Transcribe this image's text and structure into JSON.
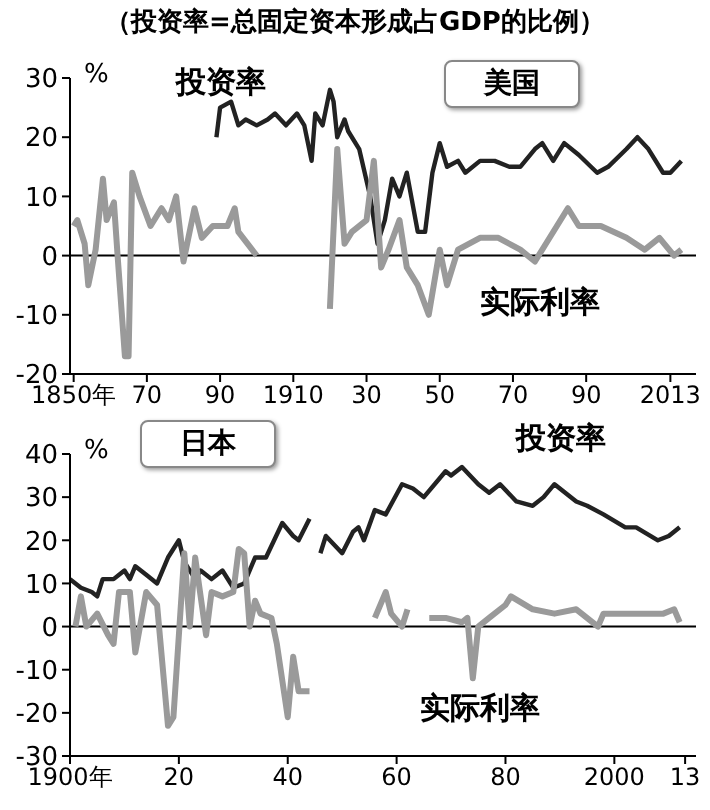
{
  "chart_data": [
    {
      "type": "line",
      "title": "（投资率=总固定资本形成占GDP的比例）",
      "subtitle": "美国",
      "ylabel": "%",
      "xlim": [
        1849,
        2020
      ],
      "xticks": [
        {
          "value": 1850,
          "label": "1850年"
        },
        {
          "value": 1870,
          "label": "70"
        },
        {
          "value": 1890,
          "label": "90"
        },
        1910,
        {
          "value": 1930,
          "label": "30"
        },
        {
          "value": 1950,
          "label": "50"
        },
        {
          "value": 1970,
          "label": "70"
        },
        {
          "value": 1990,
          "label": "90"
        },
        2013
      ],
      "ylim": [
        -20,
        30
      ],
      "yticks": [
        -20,
        -10,
        0,
        10,
        20,
        30
      ],
      "ref_lines": [
        {
          "axis": "y",
          "value": 0,
          "color": "#000000"
        }
      ],
      "series": [
        {
          "name": "投资率",
          "color": "#222222",
          "x": [
            1889,
            1890,
            1893,
            1895,
            1897,
            1900,
            1903,
            1905,
            1908,
            1911,
            1913,
            1915,
            1916,
            1918,
            1920,
            1921,
            1922,
            1924,
            1925,
            1928,
            1931,
            1933,
            1935,
            1937,
            1939,
            1941,
            1944,
            1946,
            1948,
            1950,
            1952,
            1955,
            1957,
            1961,
            1965,
            1969,
            1972,
            1976,
            1978,
            1981,
            1984,
            1988,
            1993,
            1996,
            2001,
            2004,
            2007,
            2011,
            2013,
            2016
          ],
          "values": [
            20,
            25,
            26,
            22,
            23,
            22,
            23,
            24,
            22,
            24,
            22,
            16,
            24,
            22,
            28,
            26,
            20,
            23,
            21,
            18,
            10,
            2,
            6,
            13,
            10,
            14,
            4,
            4,
            14,
            19,
            15,
            16,
            14,
            16,
            16,
            15,
            15,
            18,
            19,
            16,
            19,
            17,
            14,
            15,
            18,
            20,
            18,
            14,
            14,
            16
          ]
        },
        {
          "name": "实际利率",
          "color": "#9a9a9a",
          "x": [
            1850,
            1851,
            1853,
            1854,
            1856,
            1858,
            1859,
            1861,
            1862,
            1864,
            1865,
            1866,
            1868,
            1871,
            1874,
            1876,
            1878,
            1880,
            1883,
            1885,
            1888,
            1892,
            1894,
            1895,
            1900,
            1910,
            1920,
            1922,
            1924,
            1926,
            1930,
            1932,
            1934,
            1936,
            1939,
            1941,
            1944,
            1947,
            1950,
            1952,
            1955,
            1961,
            1966,
            1972,
            1976,
            1979,
            1985,
            1988,
            1994,
            2001,
            2006,
            2010,
            2014,
            2016
          ],
          "values": [
            5,
            6,
            2,
            -5,
            1,
            13,
            6,
            9,
            0,
            -17,
            -17,
            14,
            10,
            5,
            8,
            6,
            10,
            -1,
            8,
            3,
            5,
            5,
            8,
            4,
            0,
            null,
            -9,
            18,
            2,
            4,
            6,
            16,
            -2,
            1,
            6,
            -2,
            -5,
            -10,
            1,
            -5,
            1,
            3,
            3,
            1,
            -1,
            2,
            8,
            5,
            5,
            3,
            1,
            3,
            0,
            1
          ]
        }
      ]
    },
    {
      "type": "line",
      "subtitle": "日本",
      "ylabel": "%",
      "xlim": [
        1900,
        2015
      ],
      "xticks": [
        {
          "value": 1900,
          "label": "1900年"
        },
        {
          "value": 1920,
          "label": "20"
        },
        {
          "value": 1940,
          "label": "40"
        },
        {
          "value": 1960,
          "label": "60"
        },
        {
          "value": 1980,
          "label": "80"
        },
        2000,
        {
          "value": 2013,
          "label": "13"
        }
      ],
      "ylim": [
        -30,
        40
      ],
      "yticks": [
        -30,
        -20,
        -10,
        0,
        10,
        20,
        30,
        40
      ],
      "ref_lines": [
        {
          "axis": "y",
          "value": 0,
          "color": "#000000"
        }
      ],
      "series": [
        {
          "name": "投资率",
          "color": "#222222",
          "x": [
            1900,
            1902,
            1904,
            1905,
            1906,
            1908,
            1910,
            1911,
            1912,
            1914,
            1916,
            1918,
            1920,
            1921,
            1923,
            1924,
            1926,
            1928,
            1930,
            1932,
            1934,
            1936,
            1939,
            1941,
            1942,
            1944,
            1945,
            1946,
            1947,
            1950,
            1952,
            1953,
            1954,
            1956,
            1958,
            1961,
            1963,
            1965,
            1969,
            1970,
            1972,
            1975,
            1977,
            1979,
            1982,
            1985,
            1987,
            1989,
            1993,
            1995,
            1998,
            2002,
            2004,
            2008,
            2010,
            2012
          ],
          "values": [
            11,
            9,
            8,
            7,
            11,
            11,
            13,
            11,
            14,
            12,
            10,
            16,
            20,
            15,
            11,
            13,
            11,
            13,
            9,
            10,
            16,
            16,
            24,
            21,
            20,
            25,
            null,
            17,
            21,
            17,
            22,
            23,
            20,
            27,
            26,
            33,
            32,
            30,
            36,
            35,
            37,
            33,
            31,
            33,
            29,
            28,
            30,
            33,
            29,
            28,
            26,
            23,
            23,
            20,
            21,
            23
          ]
        },
        {
          "name": "实际利率",
          "color": "#9a9a9a",
          "x": [
            1901,
            1902,
            1903,
            1905,
            1907,
            1908,
            1909,
            1911,
            1912,
            1914,
            1916,
            1918,
            1919,
            1921,
            1922,
            1923,
            1925,
            1926,
            1928,
            1930,
            1931,
            1932,
            1933,
            1934,
            1935,
            1937,
            1938,
            1940,
            1941,
            1942,
            1944,
            1950,
            1956,
            1958,
            1959,
            1961,
            1962,
            1963,
            1966,
            1969,
            1972,
            1973,
            1974,
            1975,
            1977,
            1980,
            1981,
            1985,
            1989,
            1993,
            1997,
            1998,
            2004,
            2009,
            2011,
            2012
          ],
          "values": [
            0,
            7,
            0,
            3,
            -2,
            -4,
            8,
            8,
            -6,
            8,
            5,
            -23,
            -21,
            17,
            0,
            16,
            -2,
            8,
            7,
            8,
            18,
            17,
            0,
            6,
            3,
            2,
            -4,
            -21,
            -7,
            -15,
            -15,
            null,
            2,
            8,
            3,
            0,
            4,
            null,
            2,
            2,
            1,
            2,
            -12,
            0,
            2,
            5,
            7,
            4,
            3,
            4,
            0,
            3,
            3,
            3,
            4,
            1
          ]
        }
      ]
    }
  ]
}
